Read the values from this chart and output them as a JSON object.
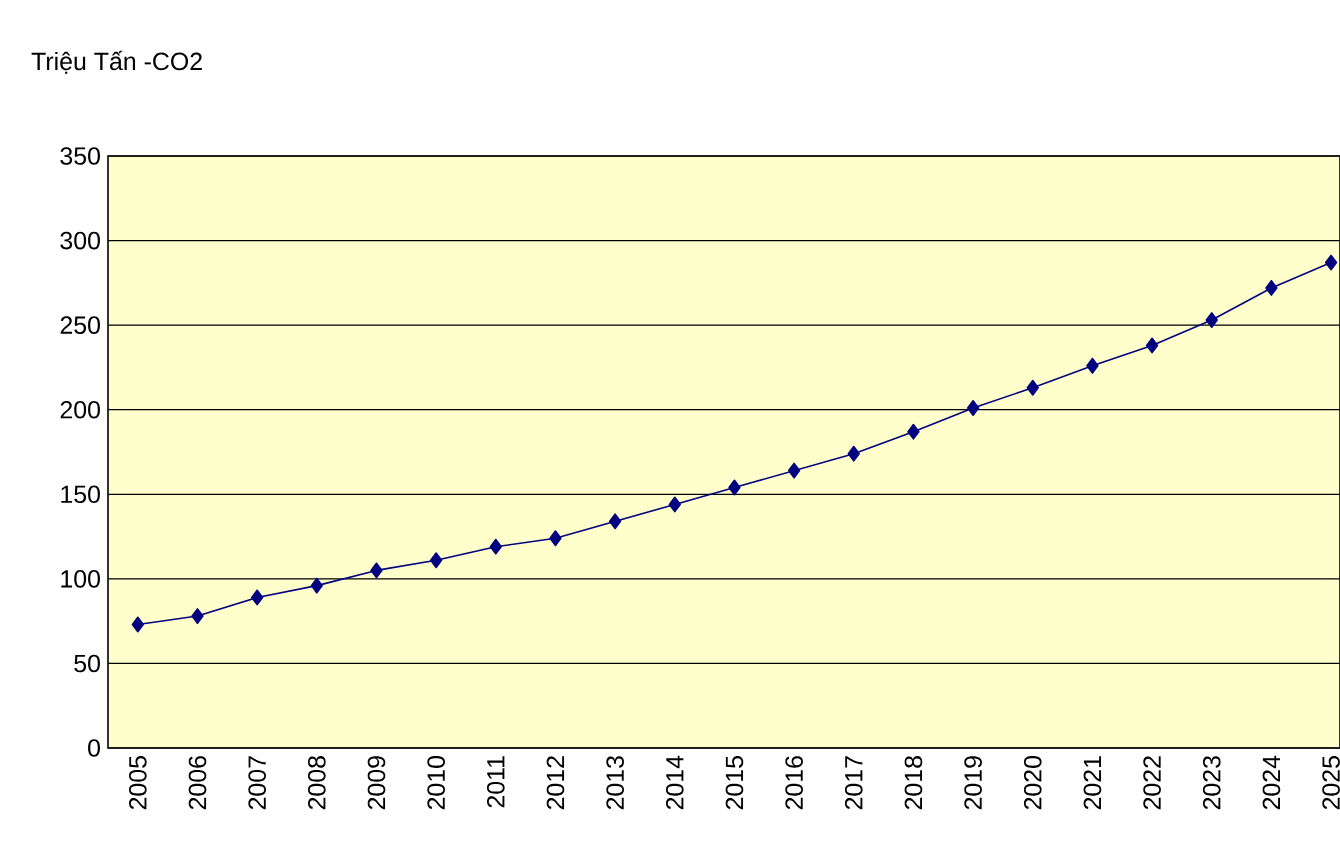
{
  "chart_data": {
    "type": "line",
    "ylabel": "Triệu Tấn -CO2",
    "categories": [
      "2005",
      "2006",
      "2007",
      "2008",
      "2009",
      "2010",
      "2011",
      "2012",
      "2013",
      "2014",
      "2015",
      "2016",
      "2017",
      "2018",
      "2019",
      "2020",
      "2021",
      "2022",
      "2023",
      "2024",
      "2025"
    ],
    "series": [
      {
        "color": "#000080",
        "values": [
          73,
          78,
          89,
          96,
          105,
          111,
          119,
          124,
          134,
          144,
          154,
          164,
          174,
          187,
          201,
          213,
          226,
          238,
          253,
          272,
          287
        ]
      }
    ],
    "ylim": [
      0,
      350
    ],
    "yticks": [
      0,
      50,
      100,
      150,
      200,
      250,
      300,
      350
    ],
    "grid": "y",
    "marker": "diamond",
    "line_style": "solid"
  }
}
